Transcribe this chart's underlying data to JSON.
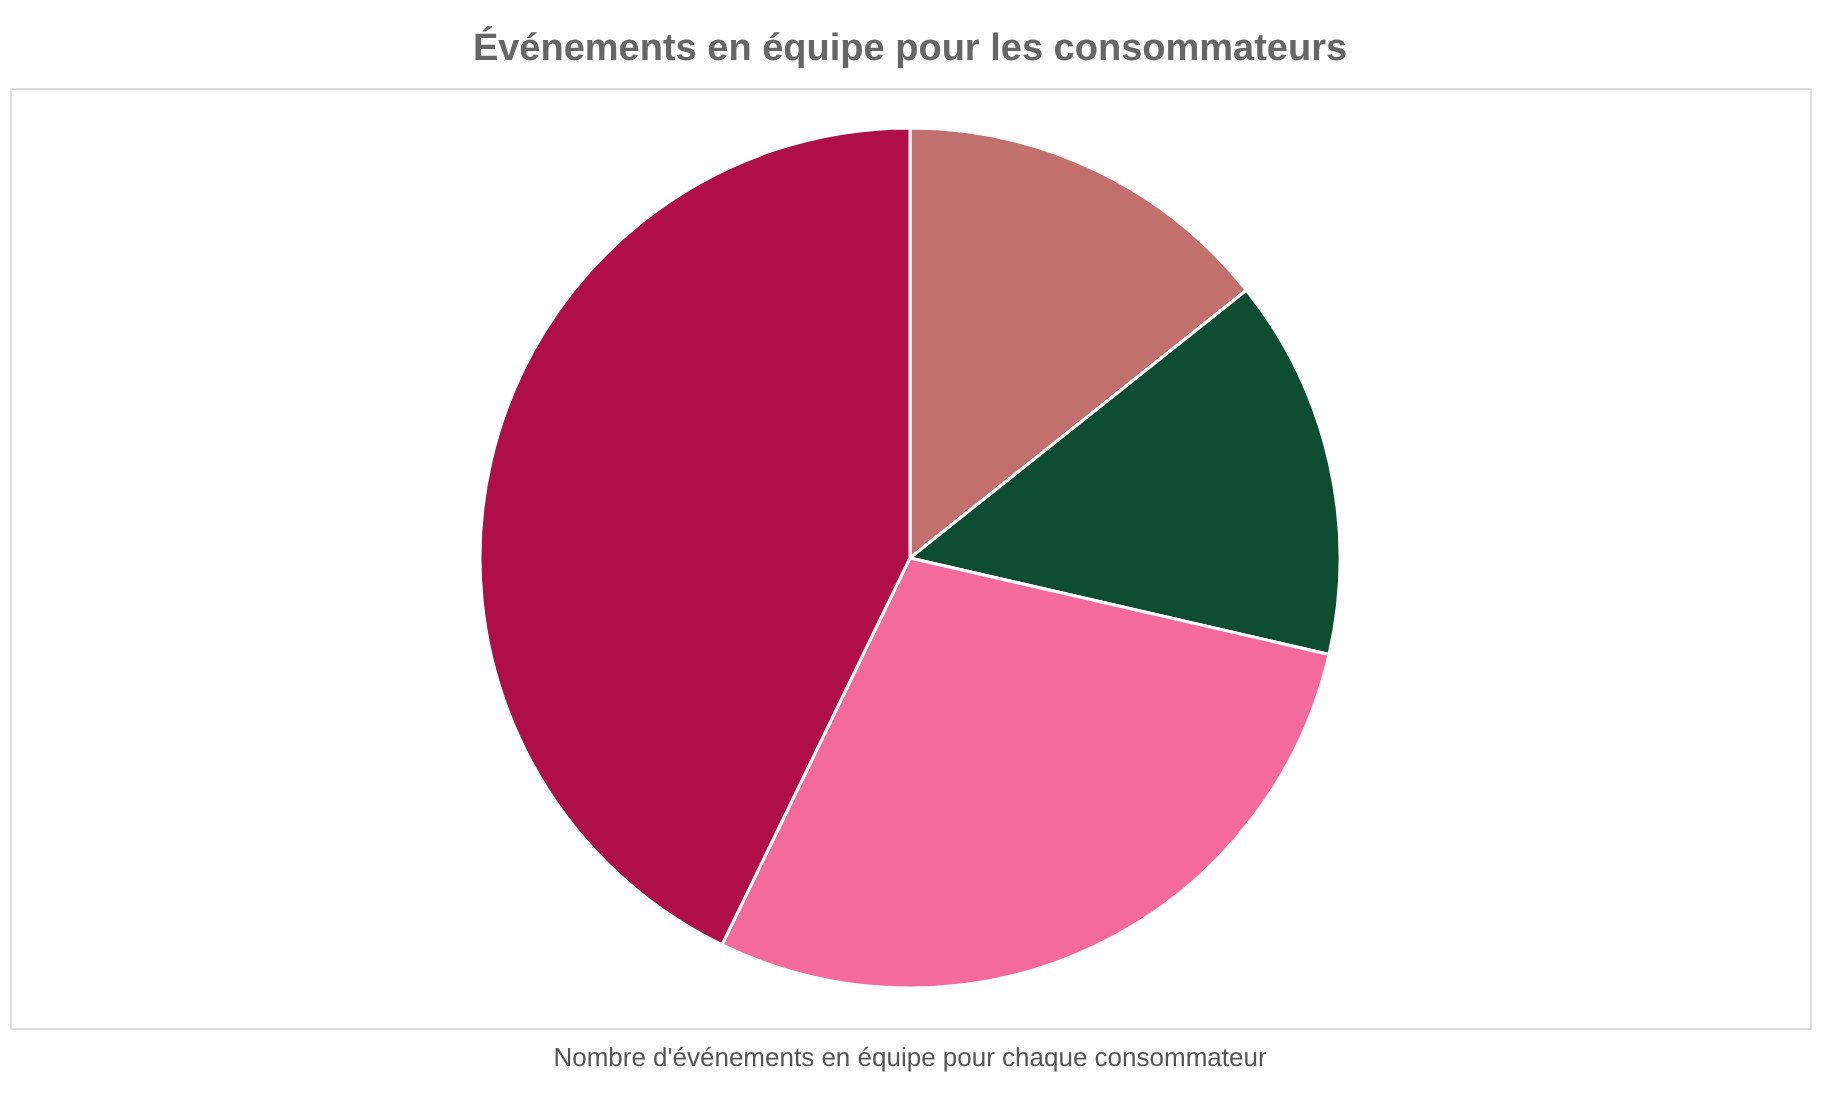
{
  "chart_data": {
    "type": "pie",
    "title": "Événements en équipe pour les consommateurs",
    "categories": [
      null,
      null,
      null,
      null
    ],
    "values": [
      14.3,
      14.3,
      28.6,
      42.8
    ],
    "colors": [
      "#c1706e",
      "#0f4d32",
      "#f46a9b",
      "#b00e47"
    ],
    "legend": false,
    "annotations": [
      "Nombre d'événements en équipe pour chaque consommateur"
    ]
  }
}
